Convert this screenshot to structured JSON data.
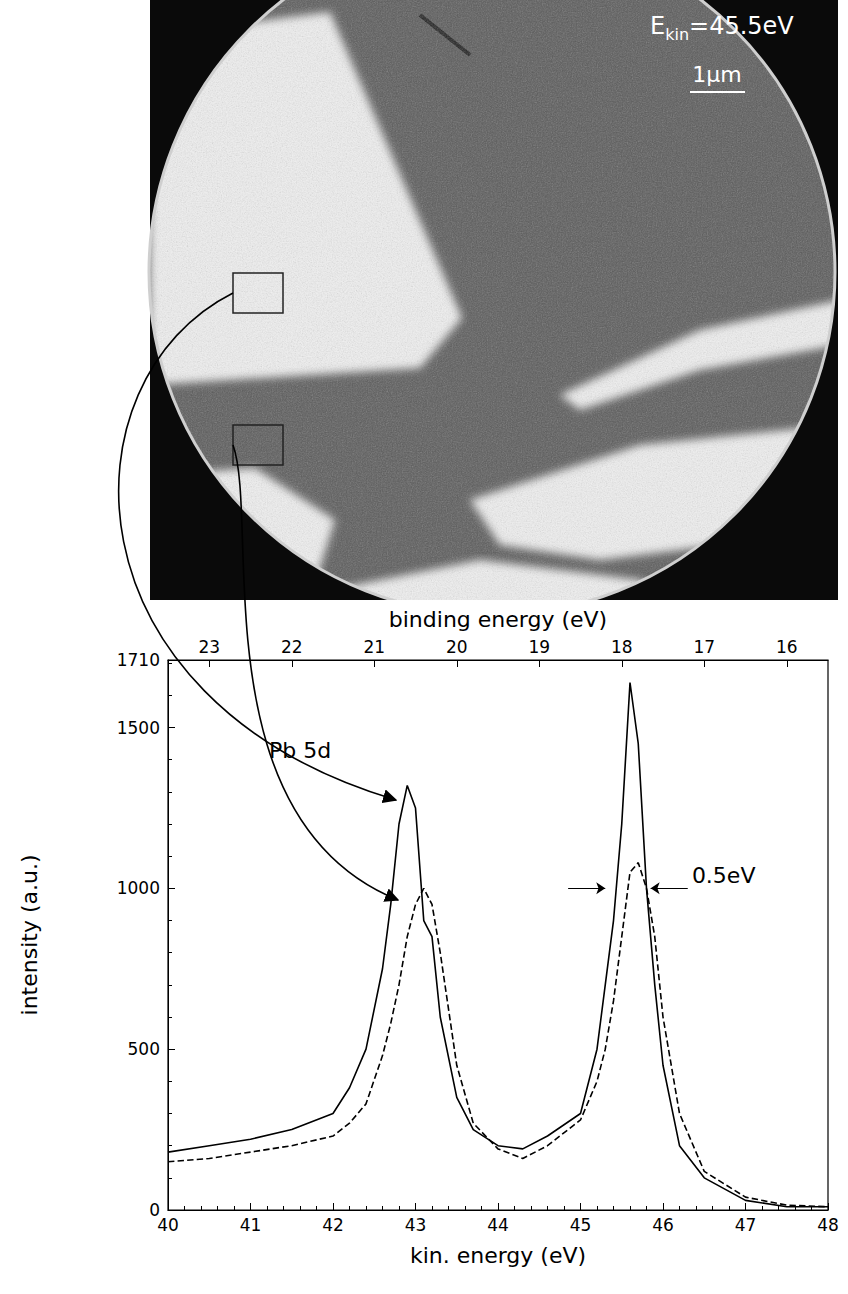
{
  "chart_data": {
    "type": "line",
    "x_label": "kin. energy (eV)",
    "x2_label": "binding energy (eV)",
    "y_label": "intensity (a.u.)",
    "xlim": [
      40,
      48
    ],
    "xticks": [
      40,
      41,
      42,
      43,
      44,
      45,
      46,
      47,
      48
    ],
    "x2lim": [
      23.5,
      15.5
    ],
    "x2ticks": [
      23,
      22,
      21,
      20,
      19,
      18,
      17,
      16
    ],
    "ylim": [
      0,
      1710
    ],
    "yticks": [
      0,
      500,
      1000,
      1500
    ],
    "grid": false,
    "x": [
      40,
      40.5,
      41,
      41.5,
      42,
      42.2,
      42.4,
      42.6,
      42.7,
      42.8,
      42.9,
      43,
      43.1,
      43.2,
      43.3,
      43.5,
      43.7,
      44,
      44.3,
      44.6,
      45,
      45.2,
      45.3,
      45.4,
      45.5,
      45.6,
      45.7,
      45.8,
      45.9,
      46,
      46.2,
      46.5,
      47,
      47.5,
      48
    ],
    "series": [
      {
        "color": "#000000",
        "line_style": "solid",
        "values": [
          180,
          200,
          220,
          250,
          300,
          380,
          500,
          750,
          950,
          1200,
          1320,
          1250,
          900,
          850,
          600,
          350,
          250,
          200,
          190,
          230,
          300,
          500,
          700,
          900,
          1200,
          1640,
          1450,
          1000,
          700,
          450,
          200,
          100,
          30,
          10,
          10
        ]
      },
      {
        "color": "#000000",
        "line_style": "dashed",
        "values": [
          150,
          160,
          180,
          200,
          230,
          270,
          330,
          480,
          580,
          700,
          850,
          950,
          1000,
          950,
          800,
          450,
          270,
          190,
          160,
          200,
          280,
          400,
          500,
          650,
          850,
          1050,
          1080,
          1000,
          850,
          600,
          300,
          120,
          40,
          15,
          10
        ]
      }
    ],
    "annotations": [
      {
        "text": "Pb 5d",
        "x": 41.6,
        "y": 1430
      },
      {
        "text": "0.5eV",
        "x": 46.35,
        "y": 1040,
        "from": 45.3,
        "to": 45.85,
        "arrow_y": 1000
      }
    ]
  },
  "image": {
    "label": {
      "symbol": "E",
      "subscript": "kin",
      "text": "=45.5eV"
    },
    "scale_bar": "1μm"
  }
}
